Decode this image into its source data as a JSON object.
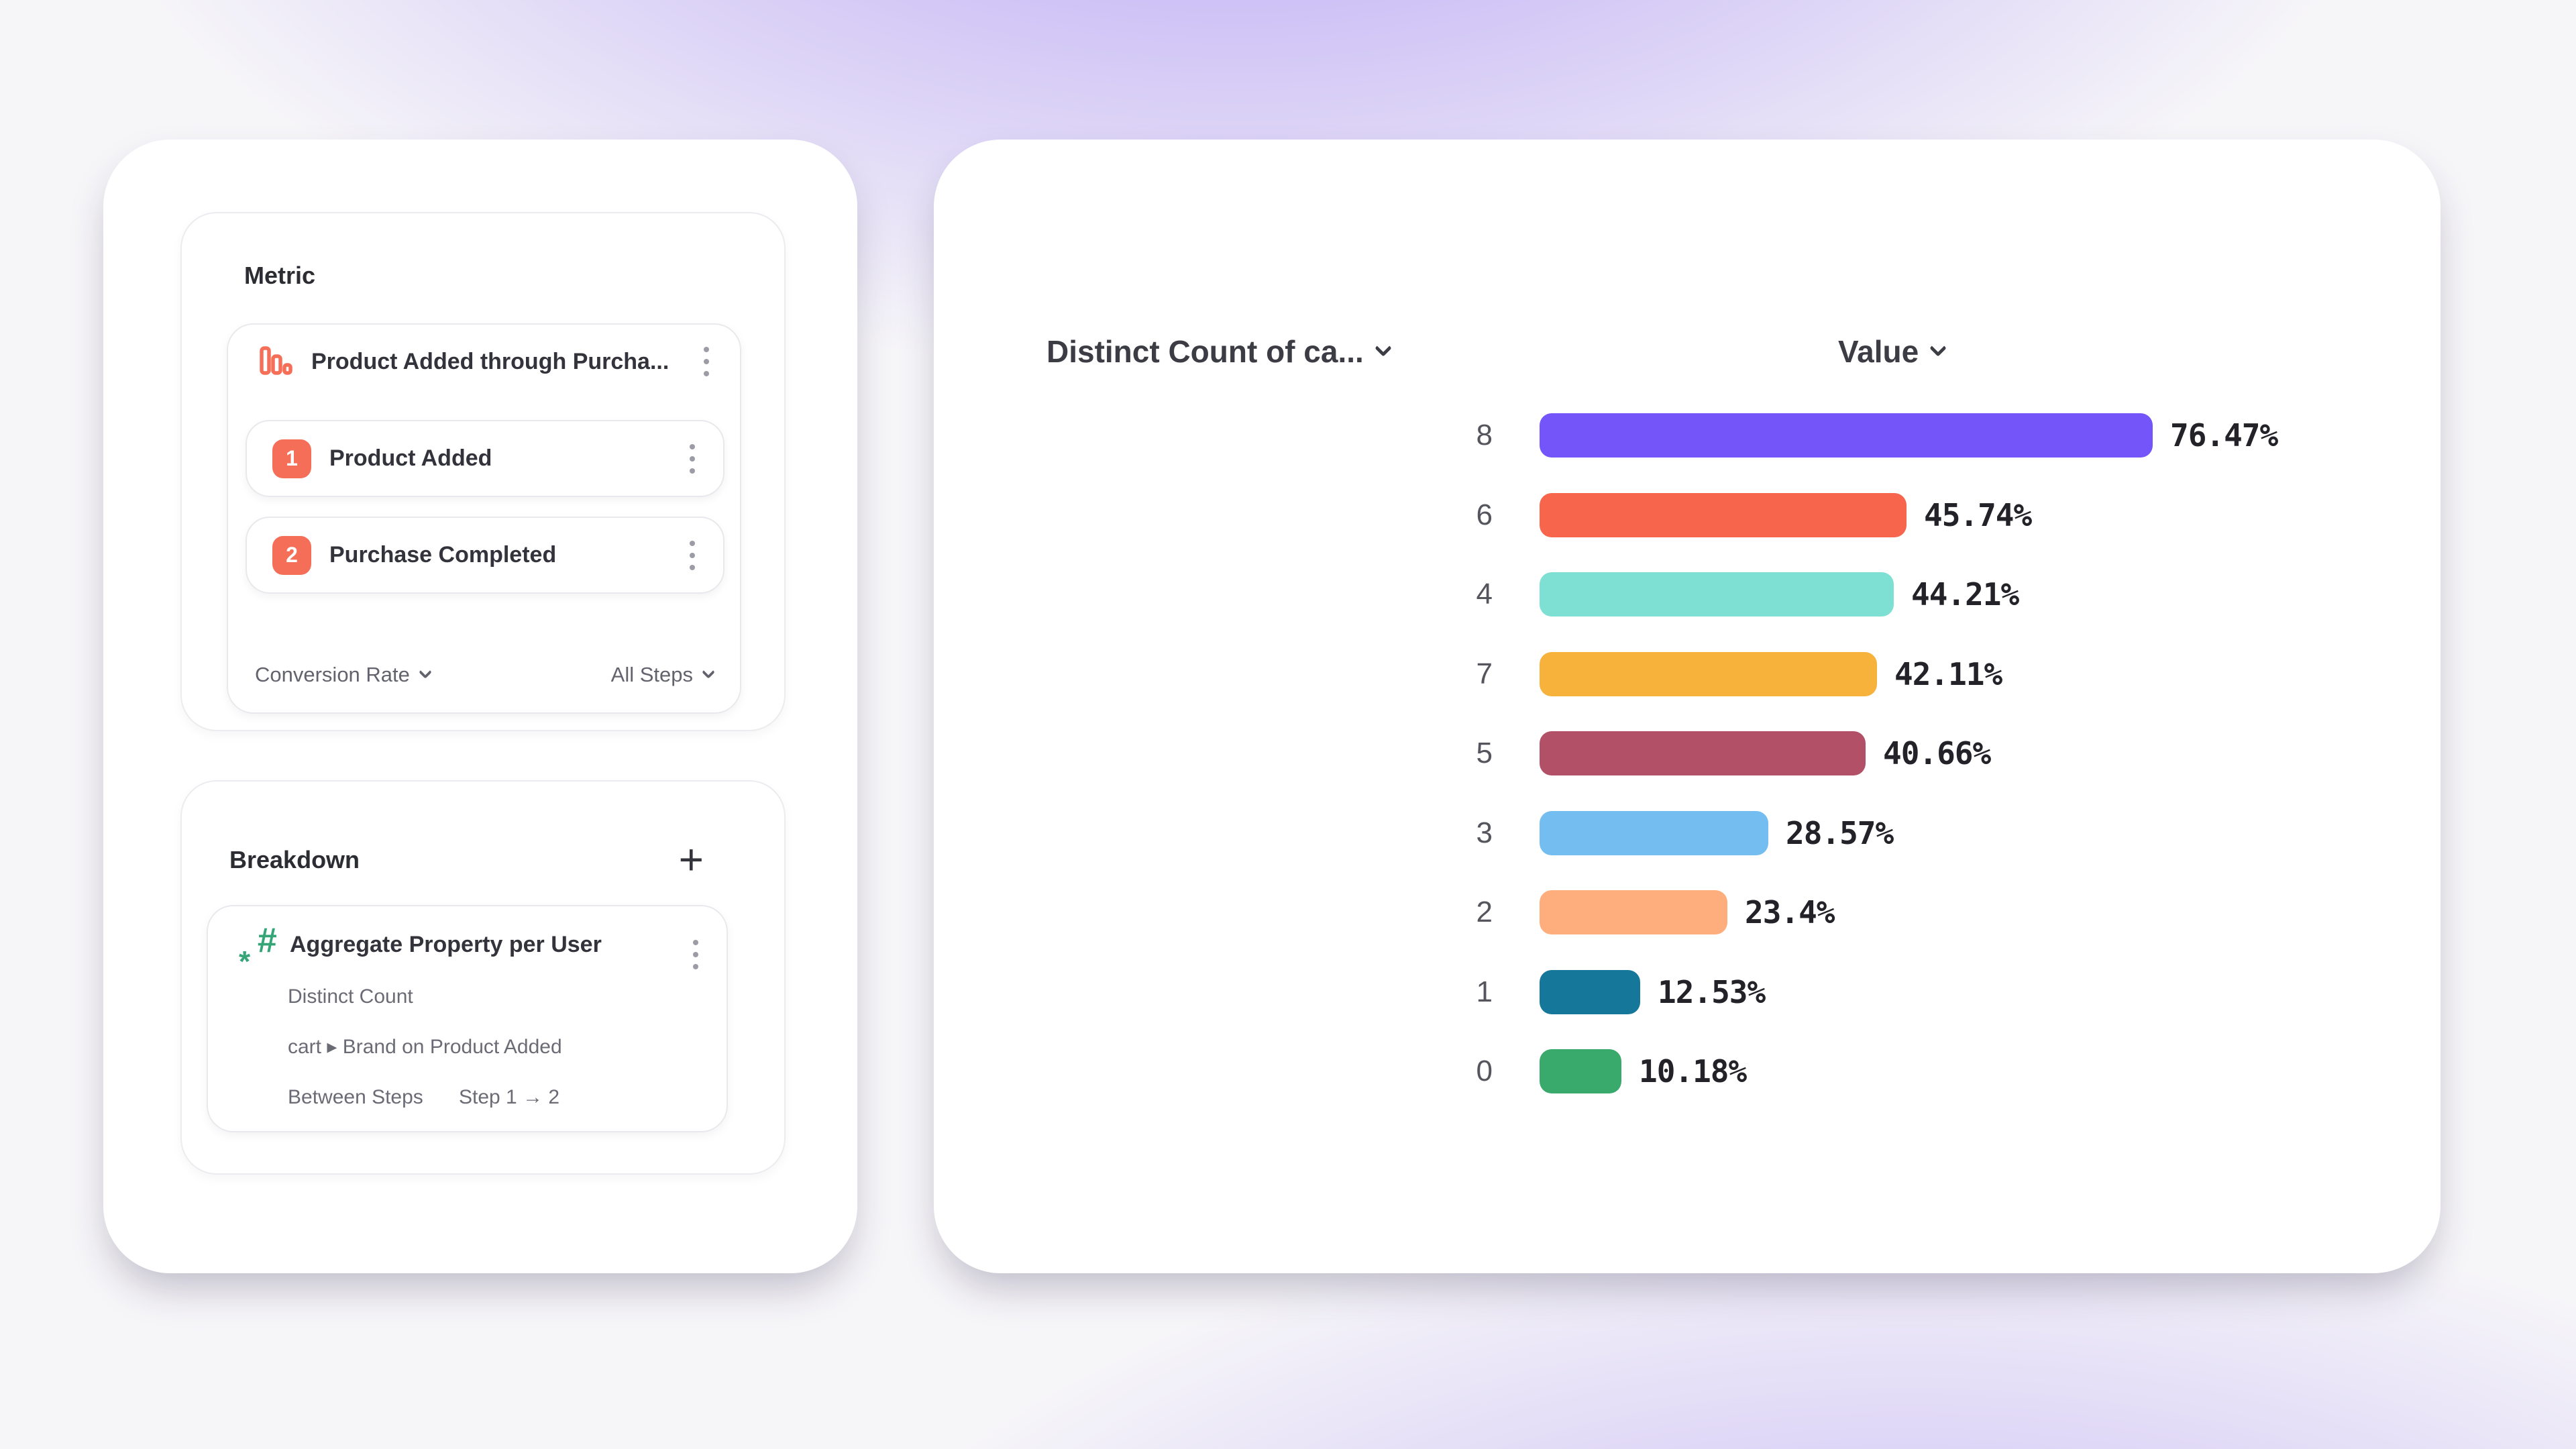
{
  "colors": {
    "step_badge": "#F56F58",
    "funnel_icon": "#F56F58",
    "hash_icon": "#35A578",
    "background_accent": "#8A6AF2",
    "card_background": "#FFFFFF"
  },
  "metric_panel": {
    "title": "Metric",
    "event": {
      "label": "Product Added through Purcha...",
      "icon": "funnel-chart-icon"
    },
    "steps": [
      {
        "index": "1",
        "label": "Product Added"
      },
      {
        "index": "2",
        "label": "Purchase Completed"
      }
    ],
    "footer": {
      "left": "Conversion Rate",
      "right": "All Steps"
    }
  },
  "breakdown_panel": {
    "title": "Breakdown",
    "add_label": "+",
    "item": {
      "icon": "hash-property-icon",
      "title": "Aggregate Property per User",
      "row1": "Distinct Count",
      "row2": "cart ▸ Brand on Product Added",
      "between_label": "Between Steps",
      "between_value": "Step 1 → 2"
    }
  },
  "chart": {
    "col1_header": "Distinct Count of ca...",
    "col2_header": "Value"
  },
  "chart_data": {
    "type": "bar",
    "orientation": "horizontal",
    "title": "",
    "xlabel": "Value",
    "ylabel": "Distinct Count of ca...",
    "xlim": [
      0,
      100
    ],
    "grid": false,
    "categories": [
      "8",
      "6",
      "4",
      "7",
      "5",
      "3",
      "2",
      "1",
      "0"
    ],
    "values": [
      76.47,
      45.74,
      44.21,
      42.11,
      40.66,
      28.57,
      23.4,
      12.53,
      10.18
    ],
    "labels": [
      "76.47%",
      "45.74%",
      "44.21%",
      "42.11%",
      "40.66%",
      "28.57%",
      "23.4%",
      "12.53%",
      "10.18%"
    ],
    "colors": [
      "#7355FA",
      "#F7654C",
      "#7EDFD3",
      "#F7B23C",
      "#B15066",
      "#74BDF1",
      "#FDAE7C",
      "#15789B",
      "#39A96C"
    ]
  }
}
